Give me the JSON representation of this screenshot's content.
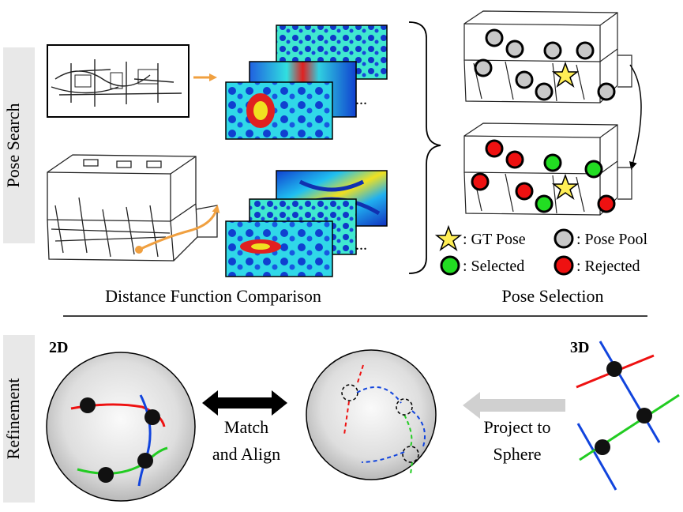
{
  "section_top": {
    "side_label": "Pose Search",
    "left_caption": "Distance Function Comparison",
    "right_caption": "Pose Selection",
    "ellipsis_1": "...",
    "ellipsis_2": "..."
  },
  "legend": {
    "gt_pose": ": GT Pose",
    "pose_pool": ": Pose Pool",
    "selected": ": Selected",
    "rejected": ": Rejected"
  },
  "section_bottom": {
    "side_label": "Refinement",
    "label_2d": "2D",
    "label_3d": "3D",
    "match_line1": "Match",
    "match_line2": "and Align",
    "project_line1": "Project to",
    "project_line2": "Sphere"
  },
  "colors": {
    "side_band": "#e8e8e8",
    "orange_arrow": "#f0a040",
    "pool": "#c8c8c8",
    "selected": "#22dd22",
    "rejected": "#ee1111",
    "gt_star": "#ffee55",
    "line_red": "#ee1111",
    "line_blue": "#1144dd",
    "line_green": "#22cc22",
    "gray_arrow": "#d0d0d0"
  }
}
